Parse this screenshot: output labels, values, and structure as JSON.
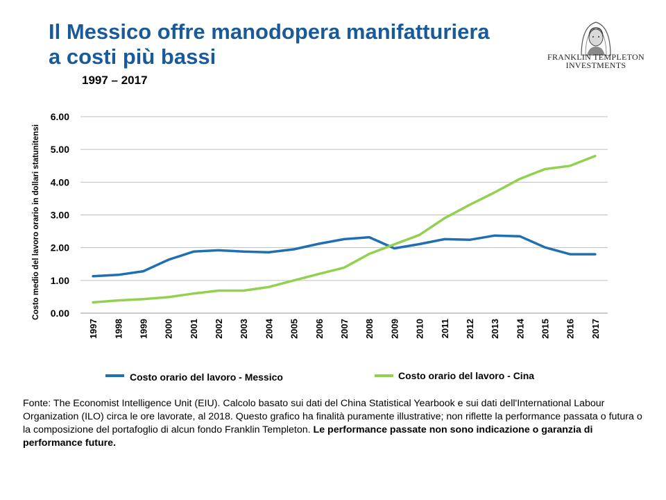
{
  "header": {
    "title_line1": "Il Messico offre manodopera manifatturiera",
    "title_line2": "a costi più bassi",
    "period": "1997 – 2017"
  },
  "logo": {
    "line1": "FRANKLIN TEMPLETON",
    "line2": "INVESTMENTS"
  },
  "footnote": {
    "text": "Fonte: The Economist Intelligence Unit (EIU).  Calcolo basato sui dati del China Statistical  Yearbook e sui dati dell'International Labour Organization (ILO) circa le ore lavorate, al 2018. Questo grafico ha finalità  puramente illustrative;  non riflette  la performance passata o futura o la composizione del portafoglio di alcun fondo Franklin Templeton. ",
    "bold": "Le performance passate non sono indicazione o garanzia di performance future."
  },
  "colors": {
    "title": "#1a5a9a",
    "mexico": "#1f6fb2",
    "china": "#92d050",
    "grid": "#bfbfbf"
  },
  "chart_data": {
    "type": "line",
    "title": "1997 – 2017",
    "ylabel": "Costo  medio del lavoro orario in dollari statunitensi",
    "xlabel": "",
    "ylim": [
      0,
      6
    ],
    "yticks": [
      "0.00",
      "1.00",
      "2.00",
      "3.00",
      "4.00",
      "5.00",
      "6.00"
    ],
    "grid": true,
    "legend_position": "bottom",
    "categories": [
      "1997",
      "1998",
      "1999",
      "2000",
      "2001",
      "2002",
      "2003",
      "2004",
      "2005",
      "2006",
      "2007",
      "2008",
      "2009",
      "2010",
      "2011",
      "2012",
      "2013",
      "2014",
      "2015",
      "2016",
      "2017"
    ],
    "series": [
      {
        "name": "Costo orario del lavoro - Messico",
        "color": "#1f6fb2",
        "values": [
          1.13,
          1.17,
          1.28,
          1.63,
          1.88,
          1.92,
          1.88,
          1.86,
          1.95,
          2.12,
          2.26,
          2.32,
          1.98,
          2.11,
          2.26,
          2.24,
          2.37,
          2.35,
          2.01,
          1.8,
          1.8
        ]
      },
      {
        "name": "Costo orario del lavoro - Cina",
        "color": "#92d050",
        "values": [
          0.33,
          0.39,
          0.43,
          0.49,
          0.6,
          0.69,
          0.69,
          0.8,
          1.0,
          1.2,
          1.39,
          1.81,
          2.1,
          2.39,
          2.9,
          3.31,
          3.69,
          4.1,
          4.4,
          4.5,
          4.8
        ]
      }
    ]
  }
}
